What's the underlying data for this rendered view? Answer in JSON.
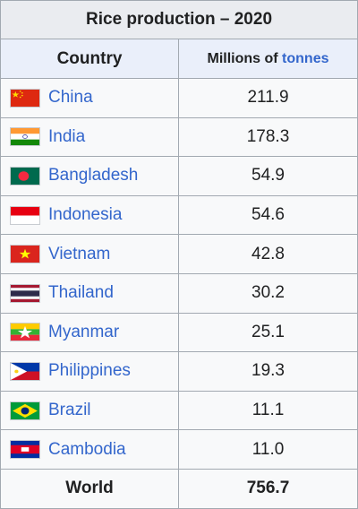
{
  "table": {
    "caption": "Rice production – 2020",
    "header": {
      "country": "Country",
      "value_prefix": "Millions of ",
      "value_unit": "tonnes"
    },
    "rows": [
      {
        "country": "China",
        "value": "211.9",
        "flag_icon": "china-flag-icon"
      },
      {
        "country": "India",
        "value": "178.3",
        "flag_icon": "india-flag-icon"
      },
      {
        "country": "Bangladesh",
        "value": "54.9",
        "flag_icon": "bangladesh-flag-icon"
      },
      {
        "country": "Indonesia",
        "value": "54.6",
        "flag_icon": "indonesia-flag-icon"
      },
      {
        "country": "Vietnam",
        "value": "42.8",
        "flag_icon": "vietnam-flag-icon"
      },
      {
        "country": "Thailand",
        "value": "30.2",
        "flag_icon": "thailand-flag-icon"
      },
      {
        "country": "Myanmar",
        "value": "25.1",
        "flag_icon": "myanmar-flag-icon"
      },
      {
        "country": "Philippines",
        "value": "19.3",
        "flag_icon": "philippines-flag-icon"
      },
      {
        "country": "Brazil",
        "value": "11.1",
        "flag_icon": "brazil-flag-icon"
      },
      {
        "country": "Cambodia",
        "value": "11.0",
        "flag_icon": "cambodia-flag-icon"
      }
    ],
    "total": {
      "label": "World",
      "value": "756.7"
    }
  },
  "colors": {
    "link": "#3366cc",
    "border": "#a2a9b1",
    "caption_bg": "#eaecf0",
    "header_bg": "#eaeffa",
    "cell_bg": "#f8f9fa",
    "text": "#202122"
  }
}
